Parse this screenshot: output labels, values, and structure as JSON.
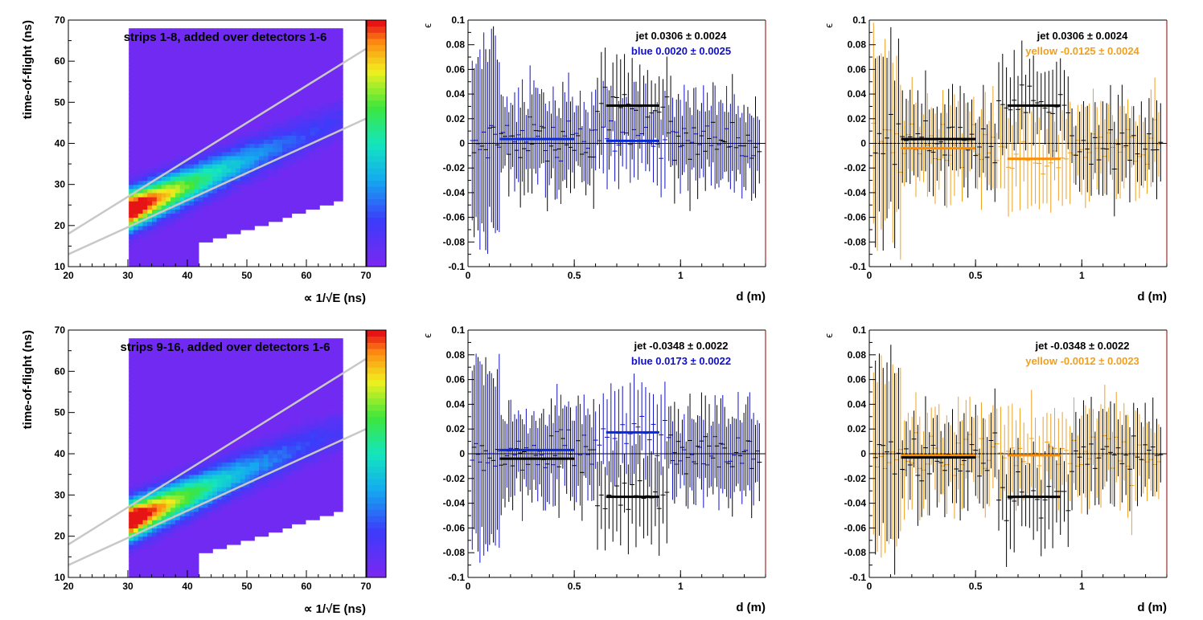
{
  "colors": {
    "jet": "#000000",
    "blue": "#1010c8",
    "blue_fit": "#0a2ad6",
    "yellow": "#f0a020",
    "yellow_fit": "#ff8c00",
    "frame_right_top": "#8b0000",
    "band_lines": "#c8c8c8",
    "heatmap_background": "#7b2cf0"
  },
  "chart_data": [
    {
      "type": "heatmap",
      "panel": "tof-top",
      "title": "strips 1-8, added over detectors 1-6",
      "xlabel": "∝ 1/√E (ns)",
      "ylabel": "time-of-flight (ns)",
      "xlim": [
        20,
        70
      ],
      "ylim": [
        10,
        70
      ],
      "xticks": [
        "20",
        "30",
        "40",
        "50",
        "60",
        "70"
      ],
      "yticks": [
        "10",
        "20",
        "30",
        "40",
        "50",
        "60",
        "70"
      ],
      "colorbar": "rainbow",
      "band_lines": [
        {
          "x": [
            20,
            70
          ],
          "y": [
            18,
            63
          ]
        },
        {
          "x": [
            20,
            70
          ],
          "y": [
            13,
            46
          ]
        }
      ]
    },
    {
      "type": "scatter",
      "panel": "blue-top",
      "xlabel": "d (m)",
      "ylabel": "ϵ",
      "xlim": [
        0,
        1.4
      ],
      "ylim": [
        -0.1,
        0.1
      ],
      "xticks": [
        "0",
        "0.5",
        "1"
      ],
      "yticks": [
        "-0.1",
        "-0.08",
        "-0.06",
        "-0.04",
        "-0.02",
        "0",
        "0.02",
        "0.04",
        "0.06",
        "0.08",
        "0.1"
      ],
      "legend": [
        {
          "label": "jet  0.0306 ± 0.0024",
          "color": "#000000"
        },
        {
          "label": "blue  0.0020 ± 0.0025",
          "color": "#1010c8"
        }
      ],
      "series": [
        {
          "name": "jet",
          "fits": [
            {
              "x": [
                0.65,
                0.9
              ],
              "y": 0.0306
            }
          ]
        },
        {
          "name": "blue",
          "fits": [
            {
              "x": [
                0.15,
                0.5
              ],
              "y": 0.0035
            },
            {
              "x": [
                0.65,
                0.9
              ],
              "y": 0.002
            }
          ]
        }
      ]
    },
    {
      "type": "scatter",
      "panel": "yellow-top",
      "xlabel": "d (m)",
      "ylabel": "ϵ",
      "xlim": [
        0,
        1.4
      ],
      "ylim": [
        -0.1,
        0.1
      ],
      "xticks": [
        "0",
        "0.5",
        "1"
      ],
      "yticks": [
        "-0.1",
        "-0.08",
        "-0.06",
        "-0.04",
        "-0.02",
        "0",
        "0.02",
        "0.04",
        "0.06",
        "0.08",
        "0.1"
      ],
      "legend": [
        {
          "label": "jet  0.0306 ± 0.0024",
          "color": "#000000"
        },
        {
          "label": "yellow -0.0125 ± 0.0024",
          "color": "#f0a020"
        }
      ],
      "series": [
        {
          "name": "jet",
          "fits": [
            {
              "x": [
                0.15,
                0.5
              ],
              "y": 0.0035
            },
            {
              "x": [
                0.65,
                0.9
              ],
              "y": 0.0306
            }
          ]
        },
        {
          "name": "yellow",
          "fits": [
            {
              "x": [
                0.15,
                0.5
              ],
              "y": -0.004
            },
            {
              "x": [
                0.65,
                0.9
              ],
              "y": -0.0125
            }
          ]
        }
      ]
    },
    {
      "type": "heatmap",
      "panel": "tof-bottom",
      "title": "strips 9-16, added over detectors 1-6",
      "xlabel": "∝ 1/√E (ns)",
      "ylabel": "time-of-flight (ns)",
      "xlim": [
        20,
        70
      ],
      "ylim": [
        10,
        70
      ],
      "xticks": [
        "20",
        "30",
        "40",
        "50",
        "60",
        "70"
      ],
      "yticks": [
        "10",
        "20",
        "30",
        "40",
        "50",
        "60",
        "70"
      ],
      "colorbar": "rainbow",
      "band_lines": [
        {
          "x": [
            20,
            70
          ],
          "y": [
            18,
            63
          ]
        },
        {
          "x": [
            20,
            70
          ],
          "y": [
            13,
            46
          ]
        }
      ]
    },
    {
      "type": "scatter",
      "panel": "blue-bottom",
      "xlabel": "d (m)",
      "ylabel": "ϵ",
      "xlim": [
        0,
        1.4
      ],
      "ylim": [
        -0.1,
        0.1
      ],
      "xticks": [
        "0",
        "0.5",
        "1"
      ],
      "yticks": [
        "-0.1",
        "-0.08",
        "-0.06",
        "-0.04",
        "-0.02",
        "0",
        "0.02",
        "0.04",
        "0.06",
        "0.08",
        "0.1"
      ],
      "legend": [
        {
          "label": "jet -0.0348 ± 0.0022",
          "color": "#000000"
        },
        {
          "label": "blue  0.0173 ± 0.0022",
          "color": "#1010c8"
        }
      ],
      "series": [
        {
          "name": "jet",
          "fits": [
            {
              "x": [
                0.15,
                0.5
              ],
              "y": -0.004
            },
            {
              "x": [
                0.65,
                0.9
              ],
              "y": -0.0348
            }
          ]
        },
        {
          "name": "blue",
          "fits": [
            {
              "x": [
                0.15,
                0.5
              ],
              "y": 0.003
            },
            {
              "x": [
                0.65,
                0.9
              ],
              "y": 0.0173
            }
          ]
        }
      ]
    },
    {
      "type": "scatter",
      "panel": "yellow-bottom",
      "xlabel": "d (m)",
      "ylabel": "ϵ",
      "xlim": [
        0,
        1.4
      ],
      "ylim": [
        -0.1,
        0.1
      ],
      "xticks": [
        "0",
        "0.5",
        "1"
      ],
      "yticks": [
        "-0.1",
        "-0.08",
        "-0.06",
        "-0.04",
        "-0.02",
        "0",
        "0.02",
        "0.04",
        "0.06",
        "0.08",
        "0.1"
      ],
      "legend": [
        {
          "label": "jet -0.0348 ± 0.0022",
          "color": "#000000"
        },
        {
          "label": "yellow -0.0012 ± 0.0023",
          "color": "#f0a020"
        }
      ],
      "series": [
        {
          "name": "jet",
          "fits": [
            {
              "x": [
                0.15,
                0.5
              ],
              "y": -0.003
            },
            {
              "x": [
                0.65,
                0.9
              ],
              "y": -0.0348
            }
          ]
        },
        {
          "name": "yellow",
          "fits": [
            {
              "x": [
                0.15,
                0.5
              ],
              "y": -0.0015
            },
            {
              "x": [
                0.65,
                0.9
              ],
              "y": -0.0012
            }
          ]
        }
      ]
    }
  ]
}
